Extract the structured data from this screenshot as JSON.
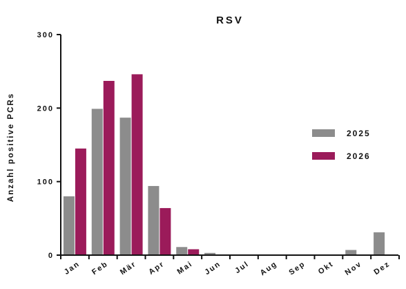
{
  "chart_data": {
    "type": "bar",
    "title": "RSV",
    "xlabel": "",
    "ylabel": "Anzahl positive PCRs",
    "categories": [
      "Jan",
      "Feb",
      "Mär",
      "Apr",
      "Mai",
      "Jun",
      "Jul",
      "Aug",
      "Sep",
      "Okt",
      "Nov",
      "Dez"
    ],
    "series": [
      {
        "name": "2025",
        "color": "#8c8c8c",
        "values": [
          80,
          199,
          187,
          94,
          11,
          3,
          0,
          0,
          0,
          0,
          7,
          31
        ]
      },
      {
        "name": "2026",
        "color": "#9b1b5a",
        "values": [
          145,
          237,
          246,
          64,
          8,
          null,
          null,
          null,
          null,
          null,
          null,
          null
        ]
      }
    ],
    "ylim": [
      0,
      300
    ],
    "yticks": [
      0,
      100,
      200,
      300
    ],
    "grid": false,
    "legend_position": "right"
  }
}
